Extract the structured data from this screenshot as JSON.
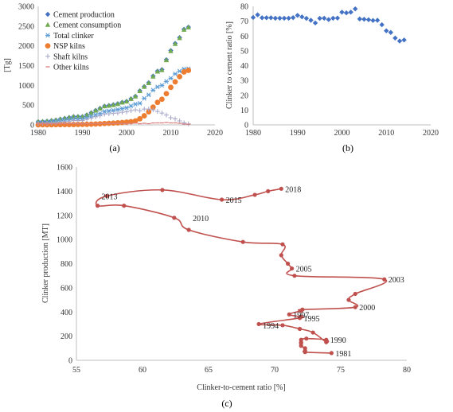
{
  "captions": {
    "a": "(a)",
    "b": "(b)",
    "c": "(c)"
  },
  "chart_data": [
    {
      "id": "a",
      "type": "scatter",
      "title": "",
      "ylabel": "[Tg]",
      "xlabel": "",
      "xlim": [
        1980,
        2020
      ],
      "ylim": [
        0,
        3000
      ],
      "xticks": [
        "1980",
        "1990",
        "2000",
        "2010",
        "2020"
      ],
      "yticks": [
        "0",
        "500",
        "1000",
        "1500",
        "2000",
        "2500",
        "3000"
      ],
      "legend": "top-left",
      "series": [
        {
          "name": "Cement production",
          "color": "#4472c4",
          "marker": "diamond",
          "x": [
            1980,
            1981,
            1982,
            1983,
            1984,
            1985,
            1986,
            1987,
            1988,
            1989,
            1990,
            1991,
            1992,
            1993,
            1994,
            1995,
            1996,
            1997,
            1998,
            1999,
            2000,
            2001,
            2002,
            2003,
            2004,
            2005,
            2006,
            2007,
            2008,
            2009,
            2010,
            2011,
            2012,
            2013,
            2014
          ],
          "y": [
            80,
            85,
            95,
            108,
            123,
            146,
            166,
            186,
            210,
            211,
            210,
            253,
            308,
            368,
            421,
            476,
            491,
            512,
            537,
            573,
            597,
            661,
            725,
            862,
            970,
            1068,
            1236,
            1361,
            1400,
            1650,
            1882,
            2063,
            2210,
            2420,
            2476
          ]
        },
        {
          "name": "Cement consumption",
          "color": "#70a94e",
          "marker": "triangle",
          "x": [
            1980,
            1981,
            1982,
            1983,
            1984,
            1985,
            1986,
            1987,
            1988,
            1989,
            1990,
            1991,
            1992,
            1993,
            1994,
            1995,
            1996,
            1997,
            1998,
            1999,
            2000,
            2001,
            2002,
            2003,
            2004,
            2005,
            2006,
            2007,
            2008,
            2009,
            2010,
            2011,
            2012,
            2013,
            2014
          ],
          "y": [
            78,
            84,
            94,
            108,
            122,
            148,
            165,
            186,
            208,
            208,
            206,
            250,
            305,
            365,
            418,
            472,
            488,
            505,
            530,
            568,
            593,
            658,
            722,
            858,
            965,
            1060,
            1225,
            1350,
            1390,
            1640,
            1870,
            2050,
            2200,
            2410,
            2470
          ]
        },
        {
          "name": "Total clinker",
          "color": "#5b9bd5",
          "marker": "asterisk",
          "x": [
            1980,
            1981,
            1982,
            1983,
            1984,
            1985,
            1986,
            1987,
            1988,
            1989,
            1990,
            1991,
            1992,
            1993,
            1994,
            1995,
            1996,
            1997,
            1998,
            1999,
            2000,
            2001,
            2002,
            2003,
            2004,
            2005,
            2006,
            2007,
            2008,
            2009,
            2010,
            2011,
            2012,
            2013,
            2014
          ],
          "y": [
            58,
            63,
            69,
            78,
            88,
            105,
            119,
            133,
            151,
            151,
            152,
            182,
            220,
            257,
            289,
            340,
            353,
            368,
            389,
            413,
            431,
            478,
            524,
            545,
            670,
            760,
            878,
            960,
            1000,
            1100,
            1180,
            1290,
            1360,
            1413,
            1420
          ]
        },
        {
          "name": "NSP kilns",
          "color": "#ed7d31",
          "marker": "circle",
          "x": [
            1980,
            1981,
            1982,
            1983,
            1984,
            1985,
            1986,
            1987,
            1988,
            1989,
            1990,
            1991,
            1992,
            1993,
            1994,
            1995,
            1996,
            1997,
            1998,
            1999,
            2000,
            2001,
            2002,
            2003,
            2004,
            2005,
            2006,
            2007,
            2008,
            2009,
            2010,
            2011,
            2012,
            2013,
            2014
          ],
          "y": [
            1,
            2,
            3,
            4,
            5,
            6,
            7,
            8,
            9,
            11,
            12,
            14,
            17,
            22,
            28,
            35,
            40,
            45,
            52,
            60,
            70,
            80,
            100,
            155,
            230,
            330,
            450,
            570,
            650,
            790,
            950,
            1090,
            1220,
            1340,
            1380
          ]
        },
        {
          "name": "Shaft kilns",
          "color": "#a5a5c8",
          "marker": "plus",
          "x": [
            1980,
            1981,
            1982,
            1983,
            1984,
            1985,
            1986,
            1987,
            1988,
            1989,
            1990,
            1991,
            1992,
            1993,
            1994,
            1995,
            1996,
            1997,
            1998,
            1999,
            2000,
            2001,
            2002,
            2003,
            2004,
            2005,
            2006,
            2007,
            2008,
            2009,
            2010,
            2011,
            2012,
            2013,
            2014
          ],
          "y": [
            30,
            34,
            40,
            48,
            56,
            70,
            82,
            95,
            110,
            112,
            114,
            140,
            172,
            205,
            230,
            270,
            280,
            290,
            300,
            320,
            330,
            360,
            380,
            360,
            400,
            400,
            380,
            340,
            300,
            250,
            180,
            150,
            100,
            50,
            25
          ]
        },
        {
          "name": "Other kilns",
          "color": "#d98080",
          "marker": "dash",
          "x": [
            1980,
            1981,
            1982,
            1983,
            1984,
            1985,
            1986,
            1987,
            1988,
            1989,
            1990,
            1991,
            1992,
            1993,
            1994,
            1995,
            1996,
            1997,
            1998,
            1999,
            2000,
            2001,
            2002,
            2003,
            2004,
            2005,
            2006,
            2007,
            2008,
            2009,
            2010,
            2011,
            2012,
            2013,
            2014
          ],
          "y": [
            27,
            27,
            26,
            26,
            27,
            29,
            30,
            30,
            32,
            28,
            26,
            28,
            31,
            30,
            31,
            35,
            33,
            33,
            37,
            33,
            31,
            38,
            44,
            30,
            40,
            30,
            48,
            50,
            50,
            60,
            50,
            50,
            40,
            23,
            15
          ]
        }
      ]
    },
    {
      "id": "b",
      "type": "scatter",
      "title": "",
      "ylabel": "Clinker  to cement  ratio  [%]",
      "xlabel": "",
      "xlim": [
        1980,
        2020
      ],
      "ylim": [
        0,
        80
      ],
      "xticks": [
        "1980",
        "1990",
        "2000",
        "2010",
        "2020"
      ],
      "yticks": [
        "0",
        "10",
        "20",
        "30",
        "40",
        "50",
        "60",
        "70",
        "80"
      ],
      "color": "#4472c4",
      "x": [
        1980,
        1981,
        1982,
        1983,
        1984,
        1985,
        1986,
        1987,
        1988,
        1989,
        1990,
        1991,
        1992,
        1993,
        1994,
        1995,
        1996,
        1997,
        1998,
        1999,
        2000,
        2001,
        2002,
        2003,
        2004,
        2005,
        2006,
        2007,
        2008,
        2009,
        2010,
        2011,
        2012,
        2013,
        2014
      ],
      "y": [
        72.5,
        74.3,
        72.3,
        72.3,
        72.3,
        72.0,
        72.0,
        72.0,
        72.0,
        72.4,
        73.9,
        72.9,
        71.9,
        70.6,
        68.8,
        71.9,
        72.0,
        71.1,
        72.0,
        72.1,
        76.1,
        75.6,
        76.1,
        78.3,
        71.5,
        71.3,
        71.0,
        70.5,
        70.6,
        67.6,
        63.5,
        62.4,
        58.6,
        56.6,
        57.3
      ]
    },
    {
      "id": "c",
      "type": "line",
      "title": "",
      "xlabel": "Clinker-to-cement ratio [%]",
      "ylabel": "Clinker production [MT]",
      "xlim": [
        55,
        80
      ],
      "ylim": [
        0,
        1600
      ],
      "xticks": [
        "55",
        "60",
        "65",
        "70",
        "75",
        "80"
      ],
      "yticks": [
        "0",
        "200",
        "400",
        "600",
        "800",
        "1000",
        "1200",
        "1400",
        "1600"
      ],
      "color": "#c0504d",
      "x": [
        74.3,
        72.3,
        72.3,
        72.3,
        72.0,
        72.0,
        72.0,
        72.0,
        72.4,
        73.9,
        73.9,
        72.9,
        71.9,
        70.6,
        68.8,
        71.9,
        72.0,
        71.1,
        72.0,
        72.1,
        76.1,
        75.6,
        76.1,
        78.3,
        71.5,
        71.3,
        71.0,
        70.5,
        70.6,
        67.6,
        63.5,
        62.4,
        58.6,
        56.6,
        57.3,
        61.5,
        66.0,
        68.5,
        69.5,
        70.5
      ],
      "y": [
        60,
        68,
        80,
        100,
        120,
        140,
        150,
        170,
        180,
        170,
        150,
        230,
        260,
        290,
        300,
        350,
        360,
        380,
        410,
        420,
        440,
        500,
        550,
        670,
        700,
        760,
        800,
        870,
        960,
        980,
        1080,
        1180,
        1280,
        1280,
        1360,
        1410,
        1330,
        1370,
        1400,
        1420
      ],
      "labels": [
        {
          "text": "1981",
          "x": 74.3,
          "y": 60
        },
        {
          "text": "1990",
          "x": 73.9,
          "y": 170
        },
        {
          "text": "1994",
          "x": 68.8,
          "y": 290
        },
        {
          "text": "1995",
          "x": 71.9,
          "y": 350
        },
        {
          "text": "1997",
          "x": 71.1,
          "y": 380
        },
        {
          "text": "2000",
          "x": 76.1,
          "y": 440
        },
        {
          "text": "2003",
          "x": 78.3,
          "y": 670
        },
        {
          "text": "2005",
          "x": 71.3,
          "y": 760
        },
        {
          "text": "2010",
          "x": 63.5,
          "y": 1180
        },
        {
          "text": "2013",
          "x": 56.6,
          "y": 1360
        },
        {
          "text": "2015",
          "x": 66.0,
          "y": 1330
        },
        {
          "text": "2018",
          "x": 70.5,
          "y": 1420
        }
      ]
    }
  ]
}
